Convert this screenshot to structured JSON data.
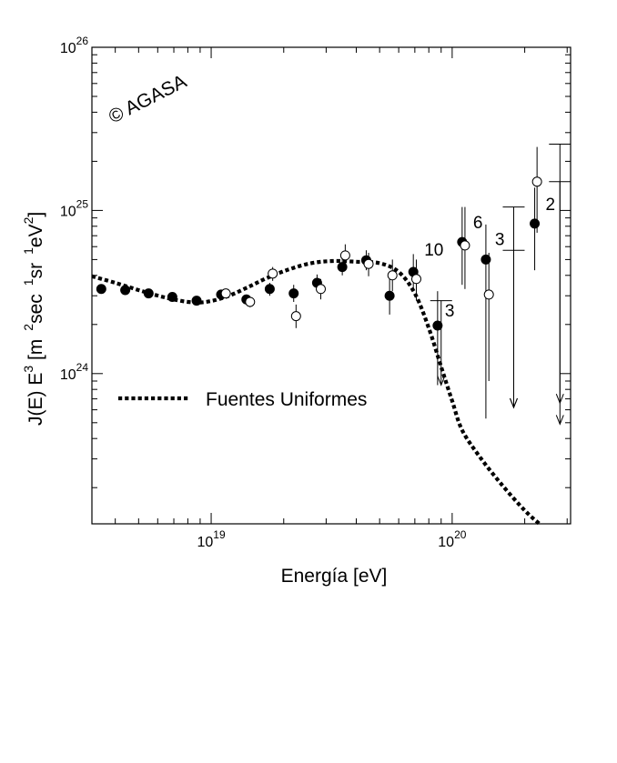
{
  "chart_data": {
    "type": "scatter",
    "xscale": "log",
    "yscale": "log",
    "xlim": [
      3.2e+18,
      3.1e+20
    ],
    "ylim": [
      1.2e+23,
      1e+26
    ],
    "xlabel": "Energía [eV]",
    "ylabel": {
      "base": "J(E) E",
      "exp": "3",
      "open": " [m",
      "m_exp": "2",
      "sec": "sec",
      "sec_exp": "1",
      "sr": "sr",
      "sr_exp": "1",
      "ev": "eV",
      "ev_exp": "2",
      "close": "]"
    },
    "x_ticks": [
      {
        "value": 1e+19,
        "base": "10",
        "exp": "19"
      },
      {
        "value": 1e+20,
        "base": "10",
        "exp": "20"
      }
    ],
    "y_ticks": [
      {
        "value": 1e+24,
        "base": "10",
        "exp": "24"
      },
      {
        "value": 1e+25,
        "base": "10",
        "exp": "25"
      },
      {
        "value": 1e+26,
        "base": "10",
        "exp": "26"
      }
    ],
    "watermark": "© AGASA",
    "legend": {
      "position": "lower-left",
      "label": "Fuentes Uniformes",
      "style": "dotted"
    },
    "curve": {
      "name": "Fuentes Uniformes",
      "x": [
        3.2e+18,
        4e+18,
        5e+18,
        6.3e+18,
        8e+18,
        9.5e+18,
        1.15e+19,
        1.4e+19,
        1.7e+19,
        2.1e+19,
        2.6e+19,
        3.2e+19,
        4e+19,
        5e+19,
        6e+19,
        7e+19,
        8e+19,
        9e+19,
        1e+20,
        1.1e+20,
        1.3e+20,
        1.6e+20,
        2e+20,
        2.3e+20
      ],
      "y": [
        3.95e+24,
        3.6e+24,
        3.25e+24,
        2.95e+24,
        2.75e+24,
        2.75e+24,
        2.95e+24,
        3.35e+24,
        3.85e+24,
        4.35e+24,
        4.75e+24,
        4.9e+24,
        4.85e+24,
        4.75e+24,
        4.2e+24,
        3.1e+24,
        1.9e+24,
        1.1e+24,
        6.8e+23,
        4.5e+23,
        3.1e+23,
        2.1e+23,
        1.45e+23,
        1.2e+23
      ]
    },
    "series": [
      {
        "marker": "filled",
        "points": [
          {
            "x": 3.5e+18,
            "y": 3.3e+24
          },
          {
            "x": 4.4e+18,
            "y": 3.25e+24
          },
          {
            "x": 5.5e+18,
            "y": 3.1e+24
          },
          {
            "x": 6.9e+18,
            "y": 2.95e+24
          },
          {
            "x": 8.7e+18,
            "y": 2.8e+24,
            "yerr": [
              2.7e+24,
              2.9e+24
            ]
          },
          {
            "x": 1.1e+19,
            "y": 3.05e+24,
            "yerr": [
              2.85e+24,
              3.25e+24
            ]
          },
          {
            "x": 1.4e+19,
            "y": 2.85e+24,
            "yerr": [
              2.65e+24,
              3.05e+24
            ]
          },
          {
            "x": 1.75e+19,
            "y": 3.3e+24,
            "yerr": [
              3e+24,
              3.6e+24
            ]
          },
          {
            "x": 2.2e+19,
            "y": 3.1e+24,
            "yerr": [
              2.75e+24,
              3.5e+24
            ]
          },
          {
            "x": 2.75e+19,
            "y": 3.6e+24,
            "yerr": [
              3.2e+24,
              4.05e+24
            ]
          },
          {
            "x": 3.5e+19,
            "y": 4.5e+24,
            "yerr": [
              4e+24,
              5.1e+24
            ]
          },
          {
            "x": 4.4e+19,
            "y": 4.95e+24,
            "yerr": [
              4.3e+24,
              5.7e+24
            ]
          },
          {
            "x": 5.5e+19,
            "y": 3e+24,
            "yerr": [
              2.3e+24,
              3.8e+24
            ]
          },
          {
            "x": 6.9e+19,
            "y": 4.2e+24,
            "yerr": [
              3.2e+24,
              5.4e+24
            ],
            "label": "10"
          },
          {
            "x": 8.7e+19,
            "y": 1.97e+24,
            "yerr": [
              8.5e+23,
              3.2e+24
            ],
            "label": "3"
          },
          {
            "x": 1.1e+20,
            "y": 6.4e+24,
            "yerr": [
              3.5e+24,
              1.05e+25
            ],
            "label": "6"
          },
          {
            "x": 1.38e+20,
            "y": 5e+24,
            "yerr": [
              5.3e+23,
              8.2e+24
            ],
            "label": "3"
          },
          {
            "x": 2.2e+20,
            "y": 8.3e+24,
            "yerr": [
              4.3e+24,
              1.38e+25
            ],
            "label": "2"
          }
        ]
      },
      {
        "marker": "open",
        "points": [
          {
            "x": 1.15e+19,
            "y": 3.1e+24,
            "yerr": [
              2.9e+24,
              3.3e+24
            ]
          },
          {
            "x": 1.45e+19,
            "y": 2.75e+24,
            "yerr": [
              2.55e+24,
              2.95e+24
            ]
          },
          {
            "x": 1.8e+19,
            "y": 4.1e+24,
            "yerr": [
              3.7e+24,
              4.5e+24
            ]
          },
          {
            "x": 2.25e+19,
            "y": 2.25e+24,
            "yerr": [
              1.9e+24,
              2.65e+24
            ]
          },
          {
            "x": 2.85e+19,
            "y": 3.3e+24,
            "yerr": [
              2.85e+24,
              3.8e+24
            ]
          },
          {
            "x": 3.6e+19,
            "y": 5.3e+24,
            "yerr": [
              4.6e+24,
              6.2e+24
            ]
          },
          {
            "x": 4.5e+19,
            "y": 4.7e+24,
            "yerr": [
              3.95e+24,
              5.5e+24
            ]
          },
          {
            "x": 5.65e+19,
            "y": 4e+24,
            "yerr": [
              3.2e+24,
              5e+24
            ]
          },
          {
            "x": 7.1e+19,
            "y": 3.8e+24,
            "yerr": [
              2.8e+24,
              5e+24
            ]
          },
          {
            "x": 1.13e+20,
            "y": 6.1e+24,
            "yerr": [
              3.3e+24,
              1.05e+25
            ]
          },
          {
            "x": 1.42e+20,
            "y": 3.05e+24,
            "yerr": [
              9e+23,
              5.5e+24
            ]
          },
          {
            "x": 2.25e+20,
            "y": 1.5e+25,
            "yerr": [
              7.3e+24,
              2.45e+25
            ]
          }
        ]
      }
    ],
    "upper_limits": [
      {
        "x": 9e+19,
        "ytop": 2.8e+24,
        "ybottom": 8.5e+23
      },
      {
        "x": 1.8e+20,
        "ytop": 1.05e+25,
        "ybottom": 6.2e+23
      },
      {
        "x": 1.8e+20,
        "ytop": 5.7e+24,
        "ybottom": 6.2e+23
      },
      {
        "x": 2.8e+20,
        "ytop": 2.55e+25,
        "ybottom": 6.6e+23
      },
      {
        "x": 2.8e+20,
        "ytop": 1.5e+25,
        "ybottom": 4.9e+23
      }
    ]
  }
}
